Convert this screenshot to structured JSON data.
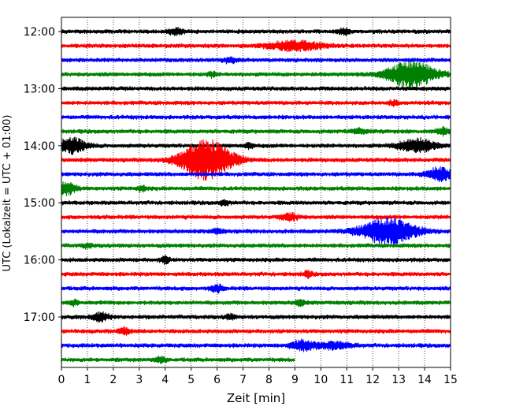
{
  "chart_data": {
    "type": "line",
    "subtype": "helicorder seismogram",
    "title": "",
    "xlabel": "Zeit  [min]",
    "ylabel": "UTC (Lokalzeit = UTC + 01:00)",
    "xlim": [
      0,
      15
    ],
    "x_ticks": [
      0,
      1,
      2,
      3,
      4,
      5,
      6,
      7,
      8,
      9,
      10,
      11,
      12,
      13,
      14,
      15
    ],
    "grid": "vertical dotted lines at each minute",
    "trace_interval_min": 15,
    "trace_colors": [
      "#000000",
      "#ff0000",
      "#0000ff",
      "#008000"
    ],
    "y_tick_labels": [
      "12:00",
      "13:00",
      "14:00",
      "15:00",
      "16:00",
      "17:00"
    ],
    "traces": [
      {
        "start": "12:00",
        "color": "#000000",
        "events": [
          {
            "t": 4.4,
            "amp": 0.5,
            "dur": 0.5
          },
          {
            "t": 10.9,
            "amp": 0.5,
            "dur": 0.4
          }
        ]
      },
      {
        "start": "12:15",
        "color": "#ff0000",
        "events": [
          {
            "t": 9.0,
            "amp": 0.9,
            "dur": 1.8
          }
        ]
      },
      {
        "start": "12:30",
        "color": "#0000ff",
        "events": [
          {
            "t": 6.5,
            "amp": 0.5,
            "dur": 0.4
          }
        ]
      },
      {
        "start": "12:45",
        "color": "#008000",
        "events": [
          {
            "t": 13.5,
            "amp": 2.5,
            "dur": 1.6
          },
          {
            "t": 5.8,
            "amp": 0.4,
            "dur": 0.3
          }
        ]
      },
      {
        "start": "13:00",
        "color": "#000000",
        "events": []
      },
      {
        "start": "13:15",
        "color": "#ff0000",
        "events": [
          {
            "t": 12.8,
            "amp": 0.4,
            "dur": 0.3
          }
        ]
      },
      {
        "start": "13:30",
        "color": "#0000ff",
        "events": []
      },
      {
        "start": "13:45",
        "color": "#008000",
        "events": [
          {
            "t": 11.5,
            "amp": 0.5,
            "dur": 0.5
          },
          {
            "t": 14.7,
            "amp": 0.7,
            "dur": 0.4
          }
        ]
      },
      {
        "start": "14:00",
        "color": "#000000",
        "events": [
          {
            "t": 0.4,
            "amp": 1.4,
            "dur": 1.0
          },
          {
            "t": 7.2,
            "amp": 0.5,
            "dur": 0.3
          },
          {
            "t": 13.7,
            "amp": 1.3,
            "dur": 1.2
          }
        ]
      },
      {
        "start": "14:15",
        "color": "#ff0000",
        "events": [
          {
            "t": 5.6,
            "amp": 3.8,
            "dur": 1.7
          }
        ]
      },
      {
        "start": "14:30",
        "color": "#0000ff",
        "events": [
          {
            "t": 14.6,
            "amp": 1.2,
            "dur": 0.9
          }
        ]
      },
      {
        "start": "14:45",
        "color": "#008000",
        "events": [
          {
            "t": 0.2,
            "amp": 1.2,
            "dur": 0.6
          },
          {
            "t": 3.1,
            "amp": 0.5,
            "dur": 0.3
          }
        ]
      },
      {
        "start": "15:00",
        "color": "#000000",
        "events": [
          {
            "t": 6.3,
            "amp": 0.5,
            "dur": 0.3
          }
        ]
      },
      {
        "start": "15:15",
        "color": "#ff0000",
        "events": [
          {
            "t": 8.8,
            "amp": 0.6,
            "dur": 0.6
          }
        ]
      },
      {
        "start": "15:30",
        "color": "#0000ff",
        "events": [
          {
            "t": 12.6,
            "amp": 2.6,
            "dur": 1.8
          },
          {
            "t": 6.0,
            "amp": 0.4,
            "dur": 0.4
          }
        ]
      },
      {
        "start": "15:45",
        "color": "#008000",
        "events": [
          {
            "t": 1.0,
            "amp": 0.4,
            "dur": 0.3
          }
        ]
      },
      {
        "start": "16:00",
        "color": "#000000",
        "events": [
          {
            "t": 4.0,
            "amp": 0.6,
            "dur": 0.3
          }
        ]
      },
      {
        "start": "16:15",
        "color": "#ff0000",
        "events": [
          {
            "t": 9.5,
            "amp": 0.5,
            "dur": 0.3
          }
        ]
      },
      {
        "start": "16:30",
        "color": "#0000ff",
        "events": [
          {
            "t": 6.0,
            "amp": 0.6,
            "dur": 0.4
          }
        ]
      },
      {
        "start": "16:45",
        "color": "#008000",
        "events": [
          {
            "t": 0.5,
            "amp": 0.5,
            "dur": 0.3
          },
          {
            "t": 9.2,
            "amp": 0.6,
            "dur": 0.3
          }
        ]
      },
      {
        "start": "17:00",
        "color": "#000000",
        "events": [
          {
            "t": 1.5,
            "amp": 0.8,
            "dur": 0.6
          },
          {
            "t": 6.5,
            "amp": 0.5,
            "dur": 0.3
          }
        ]
      },
      {
        "start": "17:15",
        "color": "#ff0000",
        "events": [
          {
            "t": 2.4,
            "amp": 0.6,
            "dur": 0.4
          }
        ]
      },
      {
        "start": "17:30",
        "color": "#0000ff",
        "events": [
          {
            "t": 9.3,
            "amp": 0.9,
            "dur": 0.8
          },
          {
            "t": 10.5,
            "amp": 0.6,
            "dur": 1.2
          }
        ]
      },
      {
        "start": "17:45",
        "color": "#008000",
        "end_min": 9.0,
        "events": [
          {
            "t": 3.8,
            "amp": 0.5,
            "dur": 0.4
          }
        ]
      }
    ]
  }
}
